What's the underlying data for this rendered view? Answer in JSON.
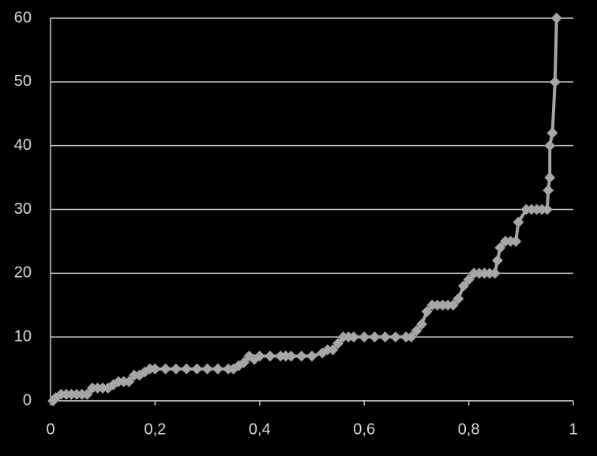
{
  "chart_data": {
    "type": "line",
    "x": [
      0.005,
      0.01,
      0.02,
      0.03,
      0.04,
      0.05,
      0.06,
      0.07,
      0.08,
      0.09,
      0.1,
      0.11,
      0.12,
      0.13,
      0.14,
      0.15,
      0.16,
      0.17,
      0.18,
      0.19,
      0.2,
      0.22,
      0.24,
      0.26,
      0.28,
      0.3,
      0.32,
      0.34,
      0.35,
      0.36,
      0.37,
      0.38,
      0.39,
      0.4,
      0.42,
      0.44,
      0.45,
      0.46,
      0.48,
      0.5,
      0.52,
      0.53,
      0.54,
      0.55,
      0.56,
      0.57,
      0.58,
      0.6,
      0.62,
      0.64,
      0.66,
      0.68,
      0.69,
      0.7,
      0.71,
      0.72,
      0.73,
      0.74,
      0.75,
      0.76,
      0.77,
      0.78,
      0.79,
      0.8,
      0.81,
      0.82,
      0.83,
      0.84,
      0.85,
      0.855,
      0.86,
      0.87,
      0.88,
      0.89,
      0.895,
      0.91,
      0.92,
      0.93,
      0.94,
      0.95,
      0.952,
      0.955,
      0.955,
      0.96,
      0.965,
      0.968
    ],
    "values": [
      0,
      0.5,
      1,
      1,
      1,
      1,
      1,
      1,
      2,
      2,
      2,
      2,
      2.5,
      3,
      3,
      3,
      4,
      4,
      4.5,
      5,
      5,
      5,
      5,
      5,
      5,
      5,
      5,
      5,
      5,
      5.5,
      6,
      7,
      6.5,
      7,
      7,
      7,
      7,
      7,
      7,
      7,
      7.5,
      8,
      8,
      9,
      10,
      10,
      10,
      10,
      10,
      10,
      10,
      10,
      10,
      11,
      12,
      14,
      15,
      15,
      15,
      15,
      15,
      16,
      18,
      19,
      20,
      20,
      20,
      20,
      20,
      22,
      24,
      25,
      25,
      25,
      28,
      30,
      30,
      30,
      30,
      30,
      33,
      35,
      40,
      42,
      50,
      60
    ],
    "color": "#a6a6a6",
    "xlim": [
      0,
      1
    ],
    "ylim": [
      0,
      60
    ],
    "xticks": [
      0,
      {
        "value": 0.2,
        "label": "0,2"
      },
      {
        "value": 0.4,
        "label": "0,4"
      },
      {
        "value": 0.6,
        "label": "0,6"
      },
      {
        "value": 0.8,
        "label": "0,8"
      },
      1
    ],
    "yticks": [
      0,
      10,
      20,
      30,
      40,
      50,
      60
    ],
    "grid": true
  }
}
